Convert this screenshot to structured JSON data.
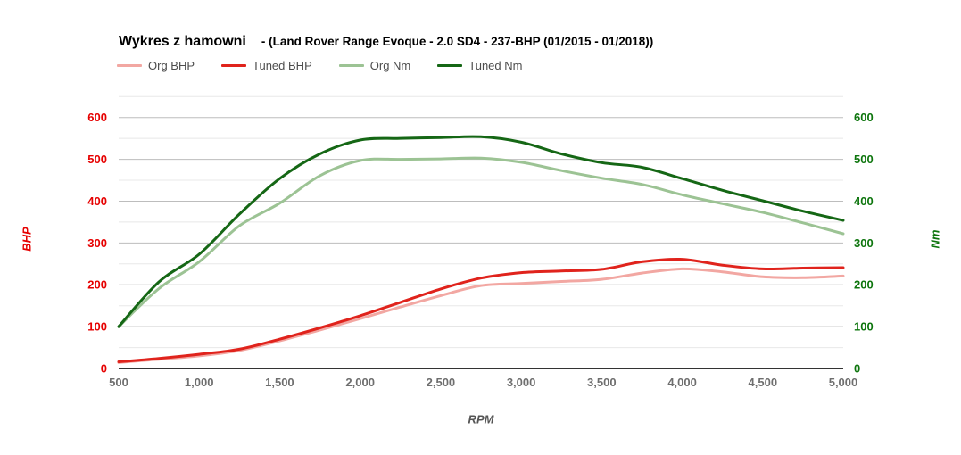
{
  "title": "Wykres z hamowni",
  "subtitle": "- (Land Rover Range Evoque - 2.0 SD4 - 237-BHP (01/2015 - 01/2018))",
  "colors": {
    "org_bhp": "#f2a7a2",
    "tuned_bhp": "#e0231c",
    "org_nm": "#9cc394",
    "tuned_nm": "#156715",
    "left_axis_text": "#e60000",
    "right_axis_text": "#0d750d",
    "x_axis_text": "#6e6e6e",
    "xlabel_text": "#555555",
    "grid_major": "#bdbdbd",
    "grid_minor": "#e8e8e8",
    "baseline": "#333333",
    "legend_text": "#4d4d4d",
    "title_text": "#000000"
  },
  "legend": [
    {
      "label": "Org BHP",
      "color": "#f2a7a2"
    },
    {
      "label": "Tuned BHP",
      "color": "#e0231c"
    },
    {
      "label": "Org Nm",
      "color": "#9cc394"
    },
    {
      "label": "Tuned Nm",
      "color": "#156715"
    }
  ],
  "axes": {
    "x_label": "RPM",
    "y_left_label": "BHP",
    "y_right_label": "Nm",
    "x_ticks": [
      "500",
      "1,000",
      "1,500",
      "2,000",
      "2,500",
      "3,000",
      "3,500",
      "4,000",
      "4,500",
      "5,000"
    ],
    "x_tick_values": [
      500,
      1000,
      1500,
      2000,
      2500,
      3000,
      3500,
      4000,
      4500,
      5000
    ],
    "y_ticks": [
      "0",
      "100",
      "200",
      "300",
      "400",
      "500",
      "600"
    ],
    "y_tick_values": [
      0,
      100,
      200,
      300,
      400,
      500,
      600
    ]
  },
  "chart_data": {
    "type": "line",
    "title": "Wykres z hamowni - (Land Rover Range Evoque - 2.0 SD4 - 237-BHP (01/2015 - 01/2018))",
    "xlabel": "RPM",
    "ylabel_left": "BHP",
    "ylabel_right": "Nm",
    "xlim": [
      500,
      5000
    ],
    "ylim": [
      0,
      650
    ],
    "grid": "horizontal only; major every 100, minor every 50",
    "legend_position": "top-left",
    "x": [
      500,
      750,
      1000,
      1250,
      1500,
      1750,
      2000,
      2250,
      2500,
      2750,
      3000,
      3250,
      3500,
      3750,
      4000,
      4250,
      4500,
      4750,
      5000
    ],
    "series": [
      {
        "name": "Org BHP",
        "axis": "left",
        "unit": "BHP",
        "color": "#f2a7a2",
        "values": [
          14,
          22,
          30,
          43,
          66,
          92,
          119,
          147,
          174,
          198,
          203,
          208,
          213,
          228,
          238,
          231,
          219,
          217,
          221
        ]
      },
      {
        "name": "Tuned BHP",
        "axis": "left",
        "unit": "BHP",
        "color": "#e0231c",
        "values": [
          16,
          24,
          34,
          46,
          70,
          97,
          126,
          158,
          190,
          216,
          229,
          233,
          237,
          255,
          261,
          247,
          238,
          240,
          241
        ]
      },
      {
        "name": "Org Nm",
        "axis": "right",
        "unit": "Nm",
        "color": "#9cc394",
        "values": [
          100,
          191,
          255,
          341,
          395,
          461,
          497,
          500,
          501,
          503,
          493,
          473,
          455,
          440,
          415,
          394,
          373,
          348,
          322
        ]
      },
      {
        "name": "Tuned Nm",
        "axis": "right",
        "unit": "Nm",
        "color": "#156715",
        "values": [
          100,
          207,
          273,
          369,
          454,
          513,
          546,
          550,
          552,
          554,
          541,
          513,
          492,
          481,
          454,
          426,
          401,
          376,
          354
        ]
      }
    ]
  }
}
